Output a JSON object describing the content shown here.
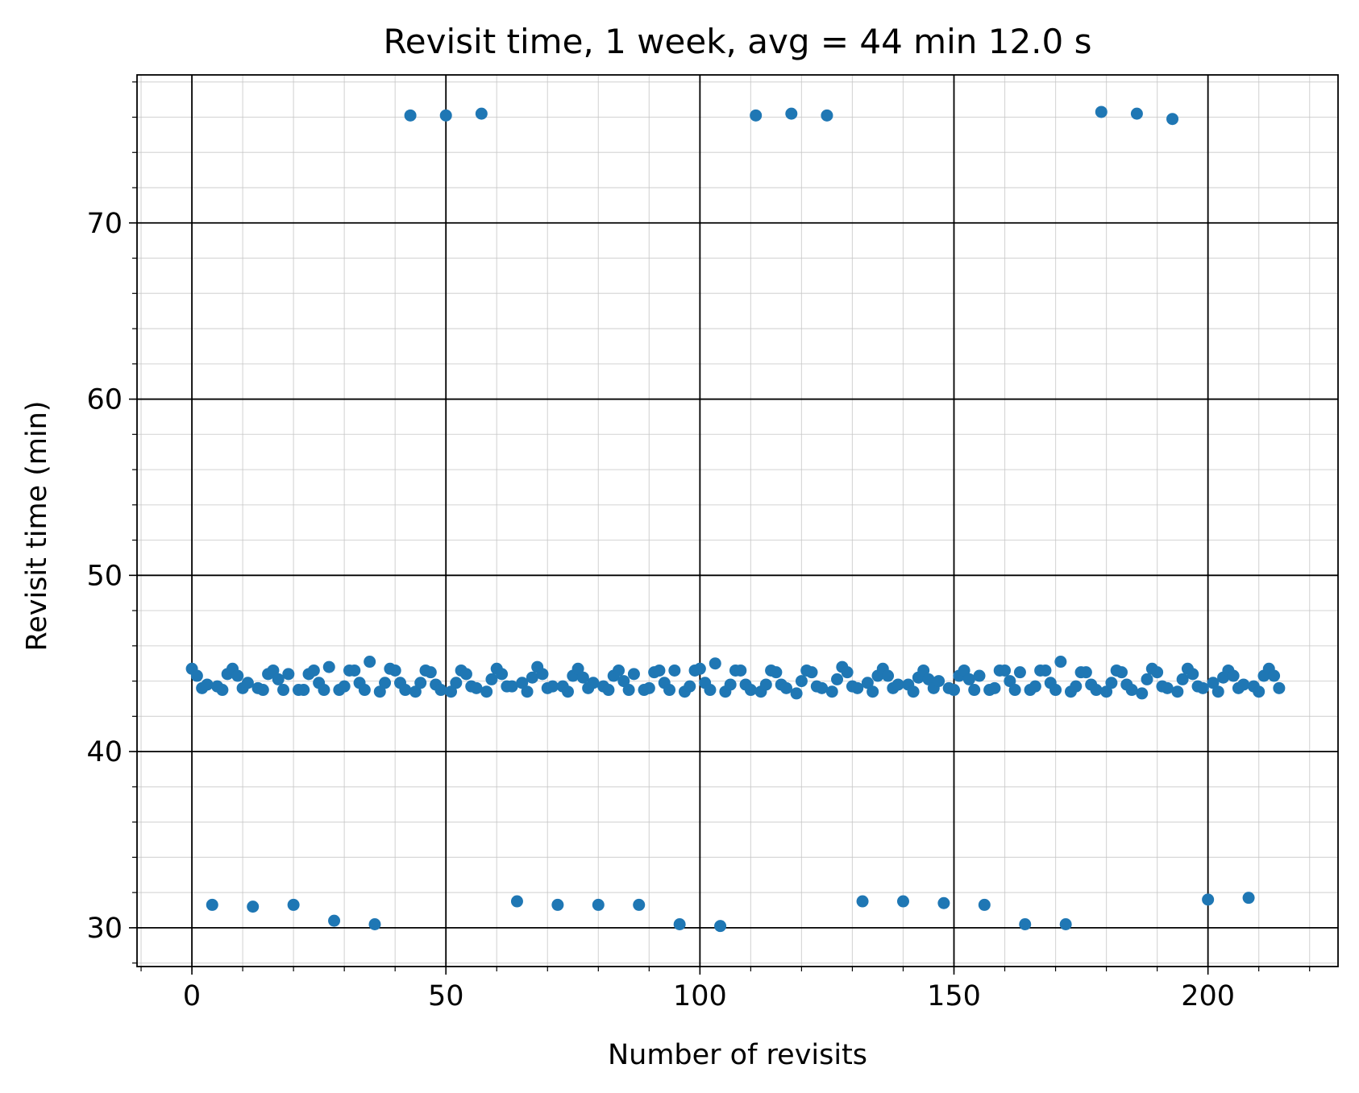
{
  "chart_data": {
    "type": "scatter",
    "title": "Revisit time, 1 week, avg = 44 min 12.0 s",
    "xlabel": "Number of revisits",
    "ylabel": "Revisit time (min)",
    "xlim": [
      -10.8,
      225.6
    ],
    "ylim": [
      27.8,
      78.4
    ],
    "xticks": [
      0,
      50,
      100,
      150,
      200
    ],
    "yticks": [
      30,
      40,
      50,
      60,
      70
    ],
    "xtick_labels": [
      "0",
      "50",
      "100",
      "150",
      "200"
    ],
    "ytick_labels": [
      "30",
      "40",
      "50",
      "60",
      "70"
    ],
    "x_minor_step": 10,
    "y_minor_step": 2,
    "grid": true,
    "marker_color": "#1f77b4",
    "series": [
      {
        "values": [
          44.7,
          44.3,
          43.6,
          43.8,
          31.3,
          43.7,
          43.5,
          44.4,
          44.7,
          44.3,
          43.6,
          43.9,
          31.2,
          43.6,
          43.5,
          44.4,
          44.6,
          44.1,
          43.5,
          44.4,
          31.3,
          43.5,
          43.5,
          44.4,
          44.6,
          43.9,
          43.5,
          44.8,
          30.4,
          43.5,
          43.7,
          44.6,
          44.6,
          43.9,
          43.5,
          45.1,
          30.2,
          43.4,
          43.9,
          44.7,
          44.6,
          43.9,
          43.5,
          76.1,
          43.4,
          43.9,
          44.6,
          44.5,
          43.8,
          43.5,
          76.1,
          43.4,
          43.9,
          44.6,
          44.4,
          43.7,
          43.6,
          76.2,
          43.4,
          44.1,
          44.7,
          44.4,
          43.7,
          43.7,
          31.5,
          43.9,
          43.4,
          44.2,
          44.8,
          44.4,
          43.6,
          43.7,
          31.3,
          43.7,
          43.4,
          44.3,
          44.7,
          44.2,
          43.6,
          43.9,
          31.3,
          43.7,
          43.5,
          44.3,
          44.6,
          44.0,
          43.5,
          44.4,
          31.3,
          43.5,
          43.6,
          44.5,
          44.6,
          43.9,
          43.5,
          44.6,
          30.2,
          43.4,
          43.7,
          44.6,
          44.7,
          43.9,
          43.5,
          45.0,
          30.1,
          43.4,
          43.8,
          44.6,
          44.6,
          43.8,
          43.5,
          76.1,
          43.4,
          43.8,
          44.6,
          44.5,
          43.8,
          43.6,
          76.2,
          43.3,
          44.0,
          44.6,
          44.5,
          43.7,
          43.6,
          76.1,
          43.4,
          44.1,
          44.8,
          44.5,
          43.7,
          43.6,
          31.5,
          43.9,
          43.4,
          44.3,
          44.7,
          44.3,
          43.6,
          43.8,
          31.5,
          43.8,
          43.4,
          44.2,
          44.6,
          44.1,
          43.6,
          44.0,
          31.4,
          43.6,
          43.5,
          44.3,
          44.6,
          44.1,
          43.5,
          44.3,
          31.3,
          43.5,
          43.6,
          44.6,
          44.6,
          44.0,
          43.5,
          44.5,
          30.2,
          43.5,
          43.7,
          44.6,
          44.6,
          43.9,
          43.5,
          45.1,
          30.2,
          43.4,
          43.7,
          44.5,
          44.5,
          43.8,
          43.5,
          76.3,
          43.4,
          43.9,
          44.6,
          44.5,
          43.8,
          43.5,
          76.2,
          43.3,
          44.1,
          44.7,
          44.5,
          43.7,
          43.6,
          75.9,
          43.4,
          44.1,
          44.7,
          44.4,
          43.7,
          43.6,
          31.6,
          43.9,
          43.4,
          44.2,
          44.6,
          44.3,
          43.6,
          43.8,
          31.7,
          43.7,
          43.4,
          44.3,
          44.7,
          44.3,
          43.6
        ]
      }
    ]
  }
}
